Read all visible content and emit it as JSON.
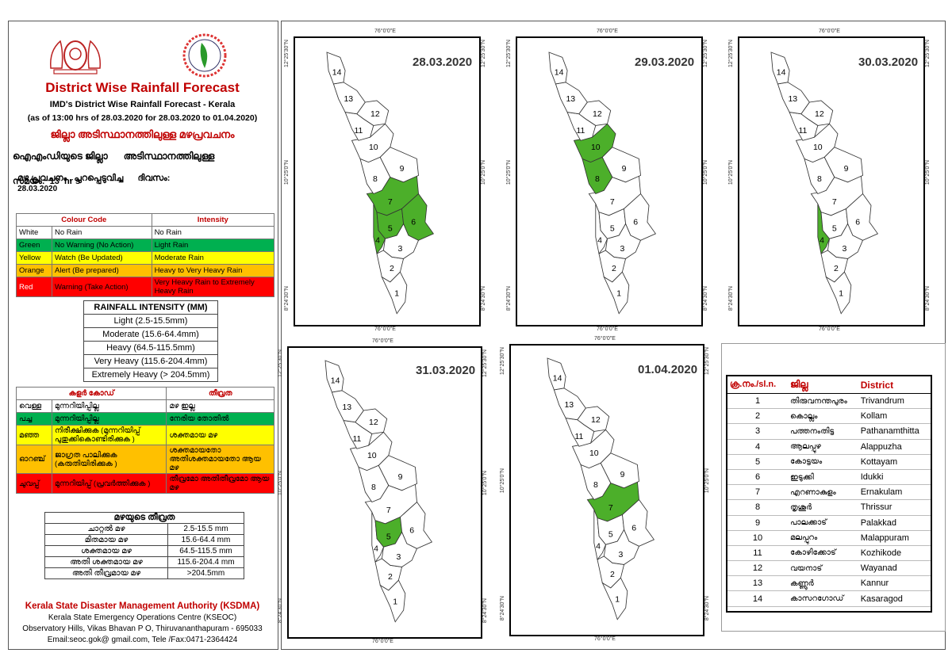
{
  "header": {
    "title": "District Wise Rainfall Forecast",
    "subtitle": "IMD's District Wise Rainfall Forecast - Kerala",
    "validity": "(as of 13:00 hrs of 28.03.2020  for 28.03.2020  to 01.04.2020)",
    "ml_title": "ജില്ലാ അടിസ്ഥാനത്തിലുള്ള മഴപ്രവചനം",
    "ml_line1": "ഐഎംഡിയുടെ ജില്ലാ      അടിസ്ഥാനത്തിലുള്ള",
    "ml_line2": "മഴ പ്രവചനം , പുറപ്പെടുവിച്ച      ദിവസം:",
    "ml_date": "28.03.2020",
    "ml_line3": "സമയം:  13  hr s"
  },
  "colour_code": {
    "head_code": "Colour Code",
    "head_intensity": "Intensity",
    "rows": [
      {
        "colour": "White",
        "code": "No Rain",
        "intensity": "No Rain",
        "bg": "#ffffff"
      },
      {
        "colour": "Green",
        "code": "No Warning (No Action)",
        "intensity": "Light Rain",
        "bg": "#00b050"
      },
      {
        "colour": "Yellow",
        "code": "Watch (Be Updated)",
        "intensity": "Moderate Rain",
        "bg": "#ffff00"
      },
      {
        "colour": "Orange",
        "code": "Alert (Be prepared)",
        "intensity": "Heavy to Very Heavy Rain",
        "bg": "#ffc000"
      },
      {
        "colour": "Red",
        "code": "Warning (Take Action)",
        "intensity": "Very Heavy Rain to Extremely Heavy Rain",
        "bg": "#ff0000"
      }
    ]
  },
  "rainfall_intensity": {
    "title": "RAINFALL INTENSITY (MM)",
    "rows": [
      "Light (2.5-15.5mm)",
      "Moderate (15.6-64.4mm)",
      "Heavy (64.5-115.5mm)",
      "Very Heavy (115.6-204.4mm)",
      "Extremely Heavy (> 204.5mm)"
    ]
  },
  "ml_colour_code": {
    "head_code": "കളർ കോഡ്",
    "head_intensity": "തീവ്രത",
    "rows": [
      {
        "colour": "വെള്ള",
        "code": "മുന്നറിയിപ്പില്ല",
        "intensity": "മഴ ഇല്ല",
        "bg": "#ffffff"
      },
      {
        "colour": "പച്ച",
        "code": "മുന്നറിയിപ്പില്ല",
        "intensity": "നേരിയ തോതിൽ",
        "bg": "#00b050"
      },
      {
        "colour": "മഞ്ഞ",
        "code": "നിരീക്ഷിക്കുക (മുന്നറിയിപ്പ് പുതുക്കികൊണ്ടിരിക്കുക )",
        "intensity": "ശക്തമായ മഴ",
        "bg": "#ffff00"
      },
      {
        "colour": "ഓറഞ്ച്",
        "code": "ജാഗ്രത പാലിക്കുക (കരുതിയിരിക്കുക )",
        "intensity": "ശക്തമായതോ അതിശക്തമായതോ ആയ മഴ",
        "bg": "#ffc000"
      },
      {
        "colour": "ചുവപ്പ്",
        "code": "മുന്നറിയിപ്പ് (പ്രവർത്തിക്കുക )",
        "intensity": "തീവ്രമോ അതിതീവ്രമോ ആയ മഴ",
        "bg": "#ff0000"
      }
    ]
  },
  "ml_intensity": {
    "title": "മഴയുടെ തീവ്രത",
    "rows": [
      {
        "label": "ചാറ്റൽ മഴ",
        "range": "2.5-15.5 mm"
      },
      {
        "label": "മിതമായ മഴ",
        "range": "15.6-64.4 mm"
      },
      {
        "label": "ശക്തമായ മഴ",
        "range": "64.5-115.5 mm"
      },
      {
        "label": "അതി ശക്തമായ മഴ",
        "range": "115.6-204.4 mm"
      },
      {
        "label": "അതി തീവ്രമായ മഴ",
        "range": ">204.5mm"
      }
    ]
  },
  "footer": {
    "org": "Kerala State Disaster Management Authority (KSDMA)",
    "line1": "Kerala State Emergency Operations Centre (KSEOC)",
    "line2": "Observatory Hills, Vikas Bhavan P O, Thiruvananthapuram - 695033",
    "line3": "Email:seoc.gok@ gmail.com, Tele /Fax:0471-2364424"
  },
  "maps": [
    {
      "date": "28.03.2020",
      "green": [
        7,
        6,
        5,
        4
      ]
    },
    {
      "date": "29.03.2020",
      "green": [
        10,
        8
      ]
    },
    {
      "date": "30.03.2020",
      "green": [
        4
      ]
    },
    {
      "date": "31.03.2020",
      "green": [
        5
      ]
    },
    {
      "date": "01.04.2020",
      "green": [
        7
      ]
    }
  ],
  "map_axes": {
    "lon": "76°0'0\"E",
    "lat_top": "12°25'30\"N",
    "lat_mid": "10°25'0\"N",
    "lat_bot": "8°24'30\"N",
    "labels": [
      "1",
      "2",
      "3",
      "4",
      "5",
      "6",
      "7",
      "8",
      "9",
      "10",
      "11",
      "12",
      "13",
      "14"
    ]
  },
  "colors": {
    "green": "#4caf2a",
    "title_red": "#c00000"
  },
  "district_table": {
    "head_no": "ക്ര.നം./sl.n.",
    "head_ml": "ജില്ല",
    "head_en": "District",
    "rows": [
      {
        "no": "1",
        "ml": "തിരുവനന്തപുരം",
        "en": "Trivandrum"
      },
      {
        "no": "2",
        "ml": "കൊല്ലം",
        "en": "Kollam"
      },
      {
        "no": "3",
        "ml": "പത്തനംതിട്ട",
        "en": "Pathanamthitta"
      },
      {
        "no": "4",
        "ml": "ആലപ്പുഴ",
        "en": "Alappuzha"
      },
      {
        "no": "5",
        "ml": "കോട്ടയം",
        "en": "Kottayam"
      },
      {
        "no": "6",
        "ml": "ഇടുക്കി",
        "en": "Idukki"
      },
      {
        "no": "7",
        "ml": "എറണാകുളം",
        "en": "Ernakulam"
      },
      {
        "no": "8",
        "ml": "തൃശൂർ",
        "en": "Thrissur"
      },
      {
        "no": "9",
        "ml": "പാലക്കാട്",
        "en": "Palakkad"
      },
      {
        "no": "10",
        "ml": "മലപ്പുറം",
        "en": "Malappuram"
      },
      {
        "no": "11",
        "ml": "കോഴിക്കോട്",
        "en": "Kozhikode"
      },
      {
        "no": "12",
        "ml": "വയനാട്",
        "en": "Wayanad"
      },
      {
        "no": "13",
        "ml": "കണ്ണൂർ",
        "en": "Kannur"
      },
      {
        "no": "14",
        "ml": "കാസറഗോഡ്",
        "en": "Kasaragod"
      }
    ]
  }
}
